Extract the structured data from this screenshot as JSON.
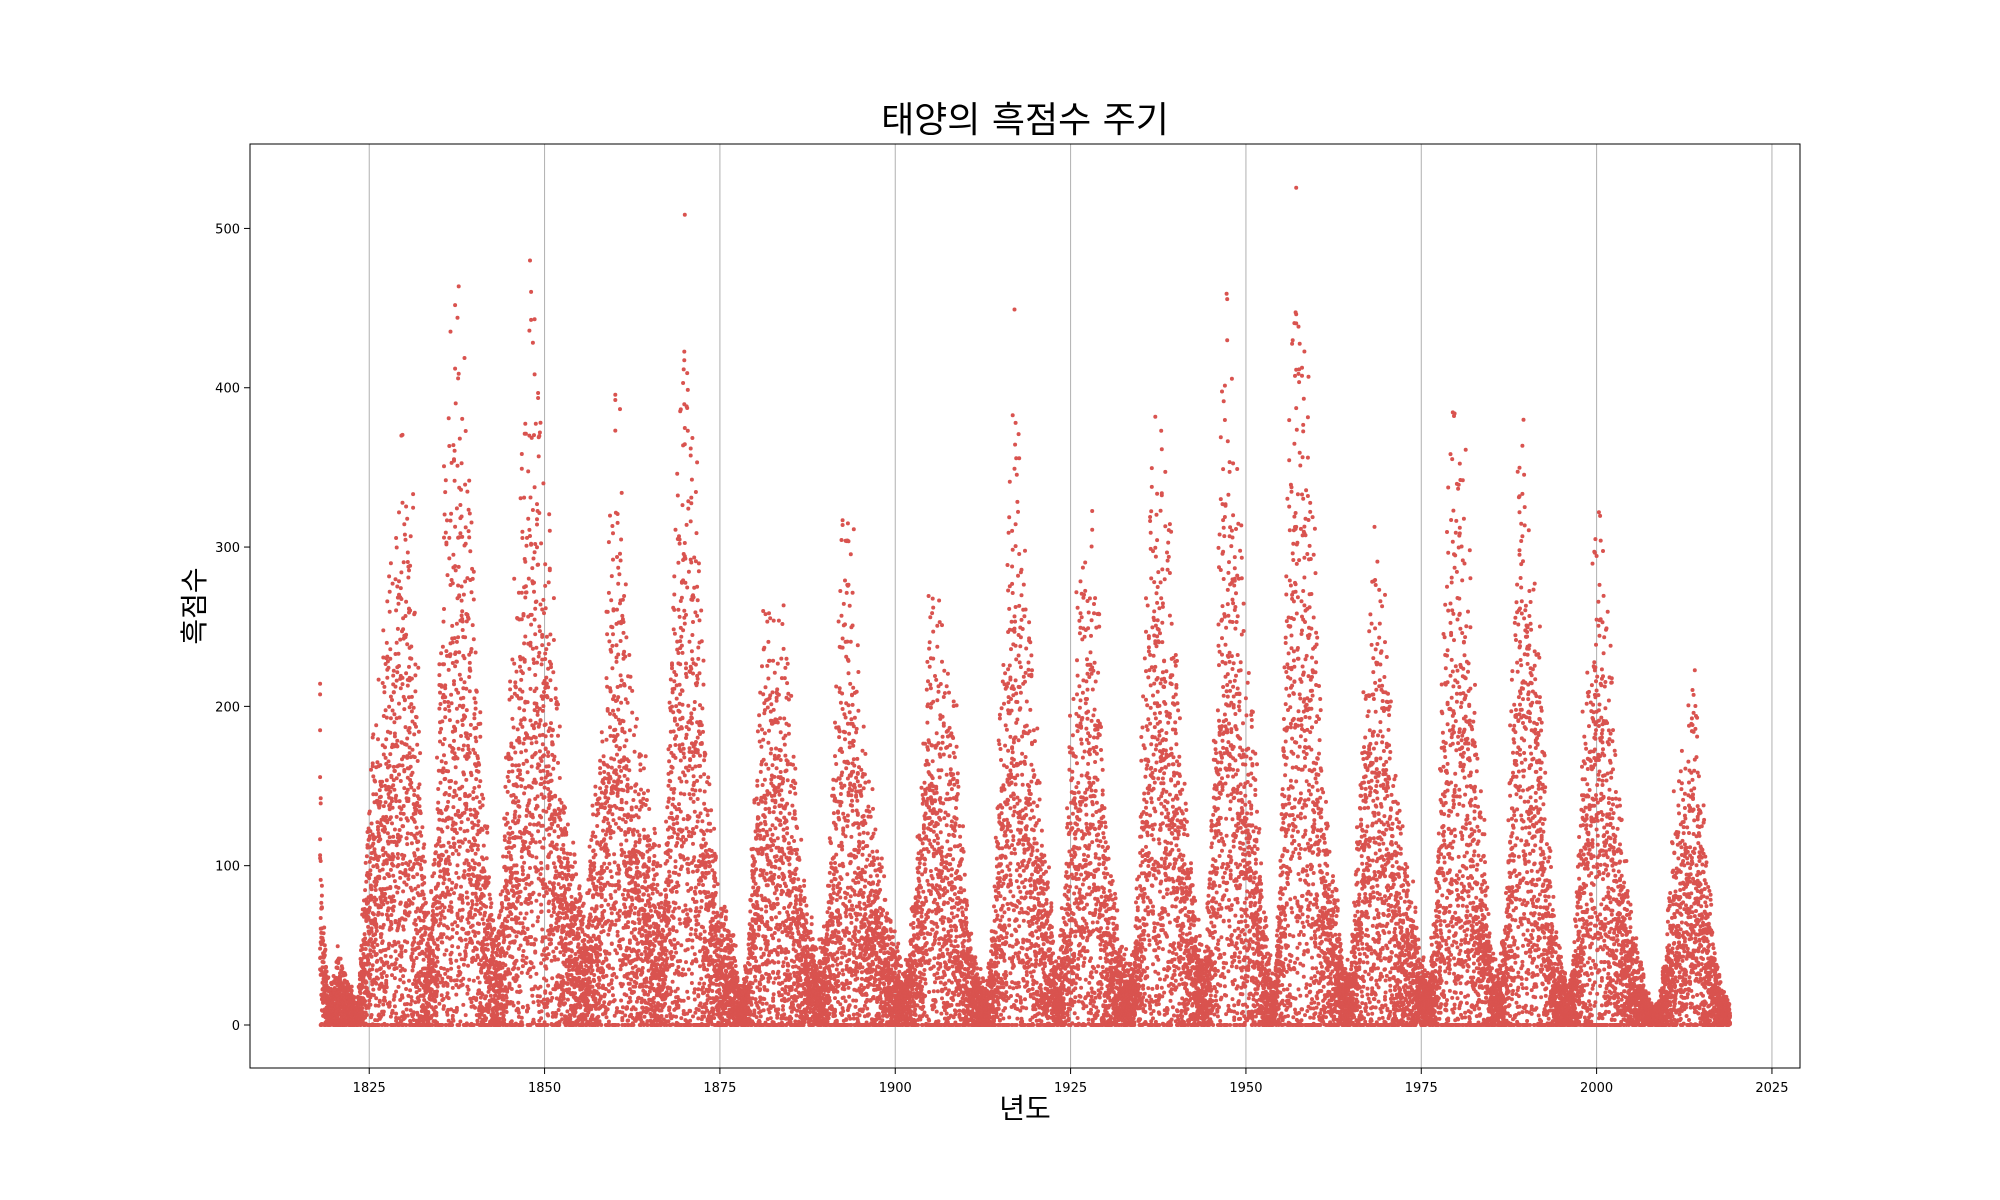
{
  "chart_data": {
    "type": "scatter",
    "title": "태양의 흑점수 주기",
    "xlabel": "년도",
    "ylabel": "흑점수",
    "xlim": [
      1808,
      2029
    ],
    "ylim": [
      -27,
      553
    ],
    "xticks": [
      1825,
      1850,
      1875,
      1900,
      1925,
      1950,
      1975,
      2000,
      2025
    ],
    "yticks": [
      0,
      100,
      200,
      300,
      400,
      500
    ],
    "grid": "x-only",
    "marker_color": "#d9534f",
    "x_range": [
      1818,
      2019
    ],
    "series": [
      {
        "points": [
          [
            1818.0,
            200
          ],
          [
            1818.2,
            90
          ],
          [
            1818.5,
            60
          ],
          [
            1818.9,
            30
          ],
          [
            1819.5,
            20
          ],
          [
            1820.5,
            40
          ],
          [
            1821.5,
            30
          ],
          [
            1822.5,
            20
          ],
          [
            1823.3,
            10
          ],
          [
            1824.3,
            80
          ],
          [
            1825.5,
            150
          ],
          [
            1826.5,
            200
          ],
          [
            1827.5,
            230
          ],
          [
            1828.3,
            260
          ],
          [
            1829.2,
            280
          ],
          [
            1830.5,
            330
          ],
          [
            1831.5,
            250
          ],
          [
            1832.5,
            120
          ],
          [
            1833.5,
            60
          ],
          [
            1834.5,
            110
          ],
          [
            1835.5,
            290
          ],
          [
            1836.5,
            350
          ],
          [
            1837.2,
            400
          ],
          [
            1838.0,
            380
          ],
          [
            1839.0,
            310
          ],
          [
            1840.0,
            240
          ],
          [
            1841.0,
            140
          ],
          [
            1842.0,
            100
          ],
          [
            1843.0,
            50
          ],
          [
            1844.0,
            80
          ],
          [
            1845.0,
            200
          ],
          [
            1846.0,
            260
          ],
          [
            1847.0,
            330
          ],
          [
            1848.1,
            380
          ],
          [
            1849.0,
            350
          ],
          [
            1850.0,
            280
          ],
          [
            1851.0,
            250
          ],
          [
            1852.0,
            160
          ],
          [
            1853.0,
            120
          ],
          [
            1854.0,
            100
          ],
          [
            1855.0,
            80
          ],
          [
            1856.0,
            60
          ],
          [
            1857.0,
            130
          ],
          [
            1858.0,
            160
          ],
          [
            1859.0,
            240
          ],
          [
            1860.0,
            320
          ],
          [
            1861.0,
            300
          ],
          [
            1862.0,
            200
          ],
          [
            1863.0,
            170
          ],
          [
            1864.0,
            150
          ],
          [
            1865.0,
            120
          ],
          [
            1866.0,
            100
          ],
          [
            1867.0,
            70
          ],
          [
            1868.0,
            200
          ],
          [
            1869.0,
            300
          ],
          [
            1870.0,
            400
          ],
          [
            1871.0,
            320
          ],
          [
            1872.0,
            280
          ],
          [
            1873.0,
            150
          ],
          [
            1874.0,
            110
          ],
          [
            1875.0,
            70
          ],
          [
            1876.0,
            60
          ],
          [
            1877.0,
            50
          ],
          [
            1878.0,
            20
          ],
          [
            1879.0,
            40
          ],
          [
            1880.0,
            150
          ],
          [
            1881.0,
            200
          ],
          [
            1882.0,
            230
          ],
          [
            1883.0,
            200
          ],
          [
            1884.0,
            240
          ],
          [
            1885.0,
            190
          ],
          [
            1886.0,
            110
          ],
          [
            1887.0,
            80
          ],
          [
            1888.0,
            60
          ],
          [
            1889.0,
            40
          ],
          [
            1890.0,
            50
          ],
          [
            1891.0,
            130
          ],
          [
            1892.0,
            240
          ],
          [
            1893.0,
            280
          ],
          [
            1894.0,
            250
          ],
          [
            1895.0,
            180
          ],
          [
            1896.0,
            130
          ],
          [
            1897.0,
            110
          ],
          [
            1898.0,
            90
          ],
          [
            1899.0,
            60
          ],
          [
            1900.0,
            50
          ],
          [
            1901.0,
            30
          ],
          [
            1902.0,
            40
          ],
          [
            1903.0,
            100
          ],
          [
            1904.0,
            170
          ],
          [
            1905.0,
            240
          ],
          [
            1906.0,
            220
          ],
          [
            1907.0,
            210
          ],
          [
            1908.0,
            200
          ],
          [
            1909.0,
            160
          ],
          [
            1910.0,
            80
          ],
          [
            1911.0,
            40
          ],
          [
            1912.0,
            30
          ],
          [
            1913.0,
            20
          ],
          [
            1914.0,
            60
          ],
          [
            1915.0,
            180
          ],
          [
            1916.0,
            260
          ],
          [
            1917.0,
            360
          ],
          [
            1918.0,
            290
          ],
          [
            1919.0,
            220
          ],
          [
            1920.0,
            160
          ],
          [
            1921.0,
            110
          ],
          [
            1922.0,
            80
          ],
          [
            1923.0,
            30
          ],
          [
            1924.0,
            70
          ],
          [
            1925.0,
            170
          ],
          [
            1926.0,
            230
          ],
          [
            1927.0,
            250
          ],
          [
            1928.0,
            260
          ],
          [
            1929.0,
            230
          ],
          [
            1930.0,
            120
          ],
          [
            1931.0,
            80
          ],
          [
            1932.0,
            50
          ],
          [
            1933.0,
            40
          ],
          [
            1934.0,
            40
          ],
          [
            1935.0,
            130
          ],
          [
            1936.0,
            250
          ],
          [
            1937.0,
            330
          ],
          [
            1938.0,
            300
          ],
          [
            1939.0,
            270
          ],
          [
            1940.0,
            220
          ],
          [
            1941.0,
            140
          ],
          [
            1942.0,
            100
          ],
          [
            1943.0,
            60
          ],
          [
            1944.0,
            30
          ],
          [
            1945.0,
            110
          ],
          [
            1946.0,
            250
          ],
          [
            1947.0,
            390
          ],
          [
            1948.0,
            320
          ],
          [
            1949.0,
            300
          ],
          [
            1950.0,
            200
          ],
          [
            1951.0,
            180
          ],
          [
            1952.0,
            100
          ],
          [
            1953.0,
            50
          ],
          [
            1954.0,
            20
          ],
          [
            1955.0,
            100
          ],
          [
            1956.0,
            300
          ],
          [
            1957.0,
            420
          ],
          [
            1958.0,
            380
          ],
          [
            1959.0,
            330
          ],
          [
            1960.0,
            250
          ],
          [
            1961.0,
            130
          ],
          [
            1962.0,
            100
          ],
          [
            1963.0,
            70
          ],
          [
            1964.0,
            30
          ],
          [
            1965.0,
            40
          ],
          [
            1966.0,
            120
          ],
          [
            1967.0,
            200
          ],
          [
            1968.0,
            250
          ],
          [
            1969.0,
            240
          ],
          [
            1970.0,
            220
          ],
          [
            1971.0,
            150
          ],
          [
            1972.0,
            120
          ],
          [
            1973.0,
            80
          ],
          [
            1974.0,
            70
          ],
          [
            1975.0,
            40
          ],
          [
            1976.0,
            30
          ],
          [
            1977.0,
            60
          ],
          [
            1978.0,
            200
          ],
          [
            1979.0,
            330
          ],
          [
            1980.0,
            310
          ],
          [
            1981.0,
            300
          ],
          [
            1982.0,
            250
          ],
          [
            1983.0,
            140
          ],
          [
            1984.0,
            100
          ],
          [
            1985.0,
            40
          ],
          [
            1986.0,
            30
          ],
          [
            1987.0,
            60
          ],
          [
            1988.0,
            200
          ],
          [
            1989.0,
            330
          ],
          [
            1990.0,
            300
          ],
          [
            1991.0,
            280
          ],
          [
            1992.0,
            200
          ],
          [
            1993.0,
            110
          ],
          [
            1994.0,
            60
          ],
          [
            1995.0,
            40
          ],
          [
            1996.0,
            20
          ],
          [
            1997.0,
            60
          ],
          [
            1998.0,
            160
          ],
          [
            1999.0,
            200
          ],
          [
            2000.0,
            280
          ],
          [
            2001.0,
            250
          ],
          [
            2002.0,
            200
          ],
          [
            2003.0,
            140
          ],
          [
            2004.0,
            90
          ],
          [
            2005.0,
            60
          ],
          [
            2006.0,
            40
          ],
          [
            2007.0,
            20
          ],
          [
            2008.0,
            10
          ],
          [
            2009.0,
            15
          ],
          [
            2010.0,
            50
          ],
          [
            2011.0,
            120
          ],
          [
            2012.0,
            140
          ],
          [
            2013.0,
            160
          ],
          [
            2014.0,
            190
          ],
          [
            2015.0,
            120
          ],
          [
            2016.0,
            80
          ],
          [
            2017.0,
            40
          ],
          [
            2018.0,
            20
          ],
          [
            2019.0,
            10
          ]
        ]
      }
    ]
  }
}
